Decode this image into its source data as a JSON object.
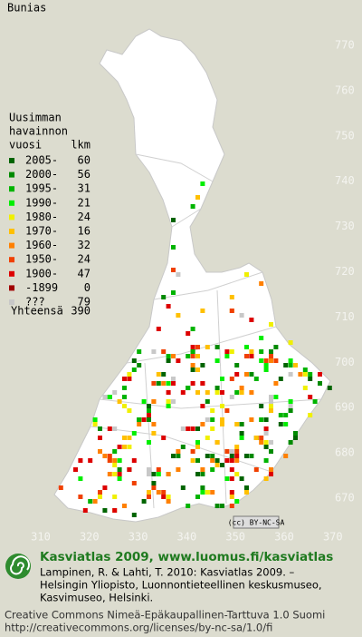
{
  "map": {
    "title": "Bunias",
    "x_labels": [
      310,
      320,
      330,
      340,
      350,
      360,
      370
    ],
    "y_labels": [
      670,
      680,
      690,
      700,
      710,
      720,
      730,
      740,
      750,
      760,
      770
    ],
    "license_badge": "(cc) BY-NC-SA"
  },
  "legend": {
    "heading": [
      "Uusimman",
      "havainnon",
      "vuosi"
    ],
    "count_heading": "lkm",
    "rows": [
      {
        "label": "2005-",
        "count": 60,
        "color": "#006400"
      },
      {
        "label": "2000-",
        "count": 56,
        "color": "#008a00"
      },
      {
        "label": "1995-",
        "count": 31,
        "color": "#00b400"
      },
      {
        "label": "1990-",
        "count": 21,
        "color": "#00ee00"
      },
      {
        "label": "1980-",
        "count": 24,
        "color": "#f0f000"
      },
      {
        "label": "1970-",
        "count": 16,
        "color": "#ffc000"
      },
      {
        "label": "1960-",
        "count": 32,
        "color": "#ff8000"
      },
      {
        "label": "1950-",
        "count": 24,
        "color": "#f04000"
      },
      {
        "label": "1900-",
        "count": 47,
        "color": "#dd0000"
      },
      {
        "label": "-1899",
        "count": 0,
        "color": "#a00000"
      },
      {
        "label": "???",
        "count": 79,
        "color": "#c8c8c8"
      }
    ],
    "total_label": "Yhteensä",
    "total": 390
  },
  "footer": {
    "brand": "Kasviatlas 2009, www.luomus.fi/kasviatlas",
    "citation": [
      "Lampinen, R. & Lahti, T. 2010: Kasviatlas 2009. –",
      "Helsingin Yliopisto, Luonnontieteellinen keskusmuseo,",
      "Kasvimuseo, Helsinki."
    ],
    "license": [
      "Creative Commons Nimeä-Epäkaupallinen-Tarttuva 1.0 Suomi",
      "http://creativecommons.org/licenses/by-nc-sa/1.0/fi"
    ]
  }
}
